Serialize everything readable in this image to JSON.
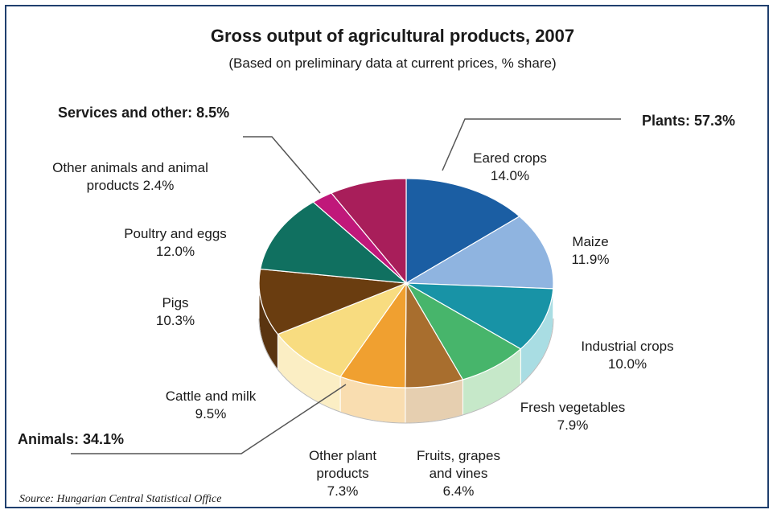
{
  "chart_data": {
    "type": "pie",
    "title": "Gross output of agricultural products, 2007",
    "subtitle": "(Based on preliminary data at current prices, % share)",
    "source": "Source: Hungarian Central Statistical Office",
    "slices": [
      {
        "label": [
          "Eared crops",
          "14.0%"
        ],
        "value": 14.0,
        "color": "#1b5ea3",
        "side": "#154a82"
      },
      {
        "label": [
          "Maize",
          "11.9%"
        ],
        "value": 11.9,
        "color": "#8fb4e0",
        "side": "#7a9cc6"
      },
      {
        "label": [
          "Industrial crops",
          "10.0%"
        ],
        "value": 10.0,
        "color": "#1893a6",
        "side": "#a9dde3"
      },
      {
        "label": [
          "Fresh vegetables",
          "7.9%"
        ],
        "value": 7.9,
        "color": "#47b56b",
        "side": "#c6e8c9"
      },
      {
        "label": [
          "Fruits, grapes",
          "and vines",
          "6.4%"
        ],
        "value": 6.4,
        "color": "#a86e2e",
        "side": "#e6cfb0"
      },
      {
        "label": [
          "Other plant",
          "products",
          "7.3%"
        ],
        "value": 7.3,
        "color": "#f0a030",
        "side": "#f9ddb0"
      },
      {
        "label": [
          "Cattle and milk",
          "9.5%"
        ],
        "value": 9.5,
        "color": "#f8dc80",
        "side": "#fbeec4"
      },
      {
        "label": [
          "Pigs",
          "10.3%"
        ],
        "value": 10.3,
        "color": "#6a3d10",
        "side": "#5a3410"
      },
      {
        "label": [
          "Poultry and eggs",
          "12.0%"
        ],
        "value": 12.0,
        "color": "#107060",
        "side": "#0c5a4d"
      },
      {
        "label": [
          "Other animals and animal",
          "products 2.4%"
        ],
        "value": 2.4,
        "color": "#c0187a",
        "side": "#a01466"
      },
      {
        "label": [],
        "value": 8.5,
        "color": "#a81e5a",
        "side": "#8a184a"
      }
    ],
    "groups": [
      {
        "label": "Plants: 57.3%",
        "value": 57.3
      },
      {
        "label": "Animals: 34.1%",
        "value": 34.1
      },
      {
        "label": "Services and other: 8.5%",
        "value": 8.5
      }
    ]
  }
}
